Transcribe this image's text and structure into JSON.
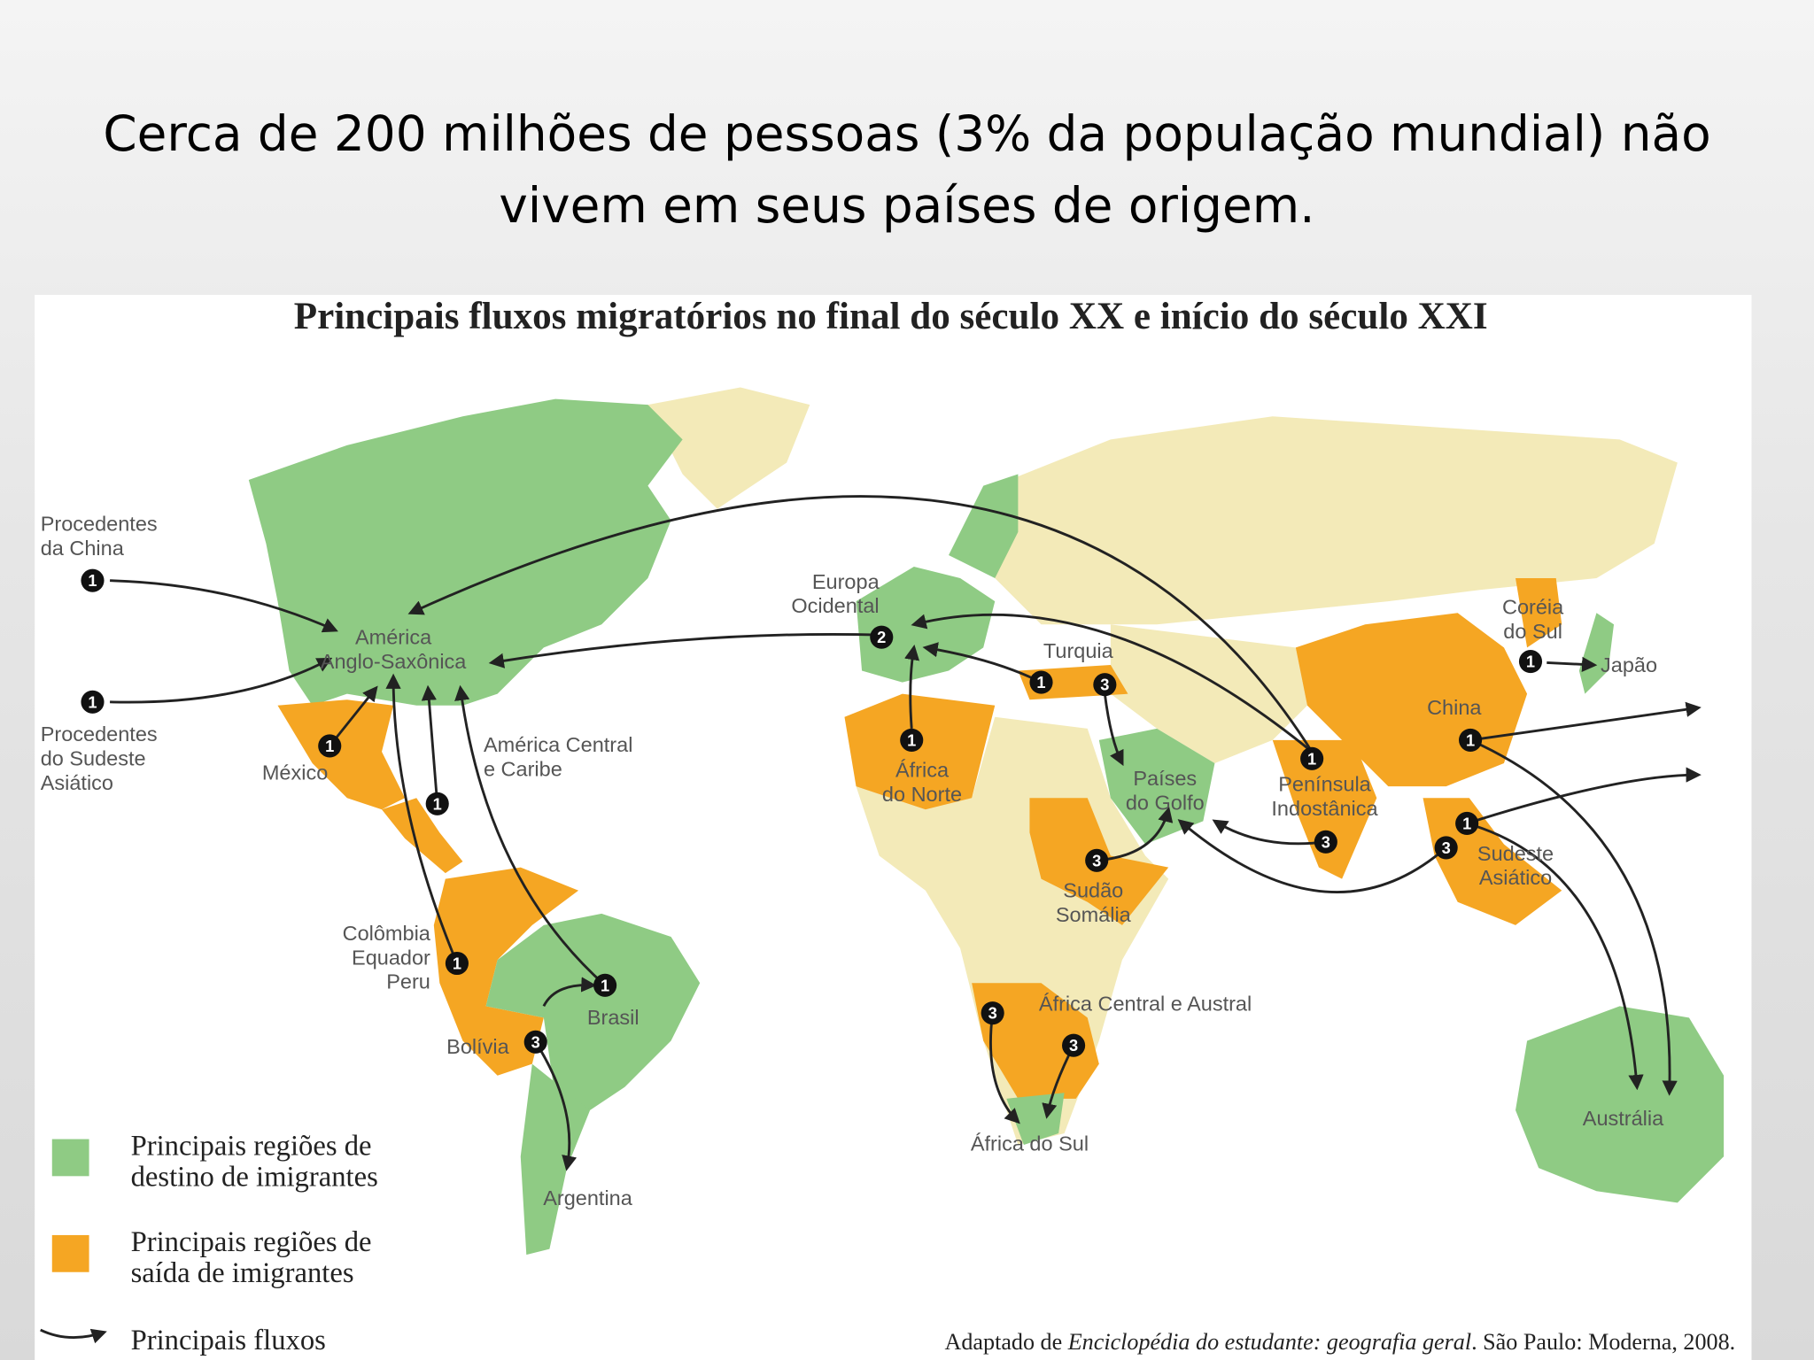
{
  "slide_title": [
    "Cerca de 200 milhões de pessoas (3% da população mundial) não",
    "vivem em seus países de origem."
  ],
  "map": {
    "title": "Principais fluxos migratórios no final do século XX e início do século XXI",
    "labels": [
      {
        "lines": [
          "Procedentes",
          "da China"
        ]
      },
      {
        "lines": [
          "Procedentes",
          "do Sudeste",
          "Asiático"
        ]
      },
      {
        "lines": [
          "América",
          "Anglo-Saxônica"
        ]
      },
      {
        "lines": [
          "México"
        ]
      },
      {
        "lines": [
          "América Central",
          "e Caribe"
        ]
      },
      {
        "lines": [
          "Colômbia",
          "Equador",
          "Peru"
        ]
      },
      {
        "lines": [
          "Bolívia"
        ]
      },
      {
        "lines": [
          "Brasil"
        ]
      },
      {
        "lines": [
          "Argentina"
        ]
      },
      {
        "lines": [
          "Europa",
          "Ocidental"
        ]
      },
      {
        "lines": [
          "Turquia"
        ]
      },
      {
        "lines": [
          "África",
          "do Norte"
        ]
      },
      {
        "lines": [
          "Países",
          "do Golfo"
        ]
      },
      {
        "lines": [
          "Península",
          "Indostânica"
        ]
      },
      {
        "lines": [
          "Sudão",
          "Somália"
        ]
      },
      {
        "lines": [
          "África Central e Austral"
        ]
      },
      {
        "lines": [
          "África do Sul"
        ]
      },
      {
        "lines": [
          "Coréia",
          "do Sul"
        ]
      },
      {
        "lines": [
          "Japão"
        ]
      },
      {
        "lines": [
          "China"
        ]
      },
      {
        "lines": [
          "Sudeste",
          "Asiático"
        ]
      },
      {
        "lines": [
          "Austrália"
        ]
      }
    ],
    "markers": [
      "1",
      "1",
      "1",
      "1",
      "1",
      "3",
      "1",
      "2",
      "1",
      "3",
      "1",
      "3",
      "1",
      "3",
      "3",
      "3",
      "1",
      "1",
      "1",
      "3"
    ],
    "legend": [
      {
        "lines": [
          "Principais regiões de",
          "destino de imigrantes"
        ],
        "color": "#8fcb84"
      },
      {
        "lines": [
          "Principais regiões de",
          "saída de imigrantes"
        ],
        "color": "#f5a623"
      },
      {
        "lines": [
          "Principais fluxos"
        ]
      }
    ],
    "source": {
      "prefix": "Adaptado de ",
      "italic": "Enciclopédia do estudante: geografia geral",
      "suffix": ". São Paulo: Moderna, 2008."
    }
  }
}
